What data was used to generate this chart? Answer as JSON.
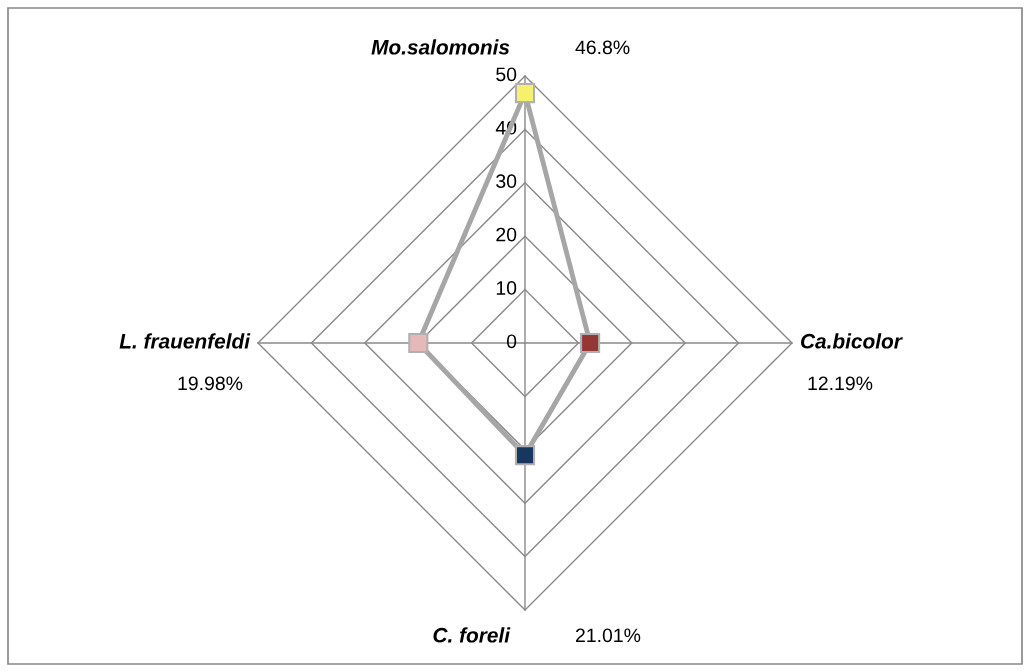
{
  "chart_data": {
    "type": "radar",
    "categories": [
      "Mo.salomonis",
      "Ca.bicolor",
      "C. foreli",
      "L. frauenfeldi"
    ],
    "series": [
      {
        "color": "#a6a6a6",
        "values": [
          46.8,
          12.19,
          21.01,
          19.98
        ],
        "colors": [
          "#f5f06e",
          "#953735",
          "#17375e",
          "#e6b9b8"
        ]
      }
    ],
    "annotations": [
      "46.8%",
      "12.19%",
      "21.01%",
      "19.98%"
    ],
    "ylim": [
      0,
      50
    ],
    "yticks": [
      0,
      10,
      20,
      30,
      40,
      50
    ],
    "grid": true,
    "marker": "square",
    "line_style": "solid"
  }
}
